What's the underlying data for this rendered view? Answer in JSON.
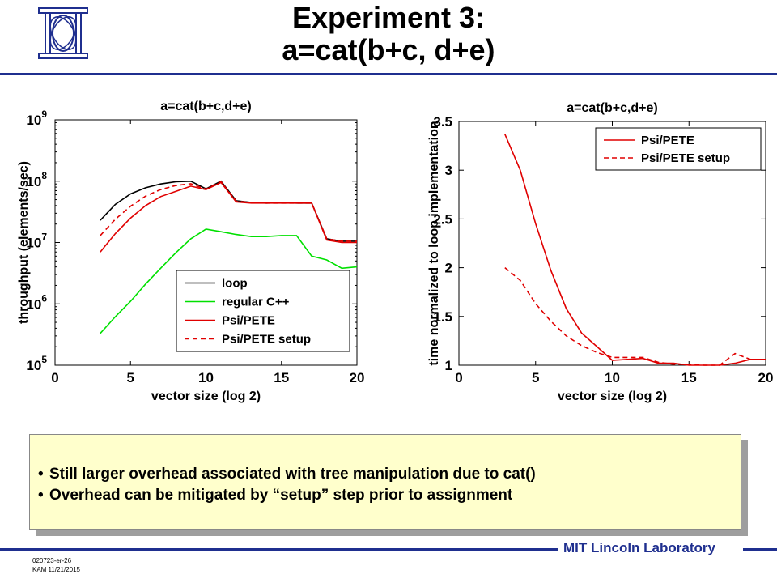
{
  "slide": {
    "title_line1": "Experiment 3:",
    "title_line2": "a=cat(b+c, d+e)",
    "bullets": [
      "Still larger overhead associated with tree manipulation due to cat()",
      "Overhead can be mitigated by “setup” step prior to assignment"
    ],
    "footer_lab": "MIT Lincoln Laboratory",
    "footer_code": "020723-er-26",
    "footer_author": "KAM 11/21/2015",
    "colors": {
      "accent": "#1f2f8f",
      "callout_bg": "#ffffcc",
      "black": "#000000",
      "green": "#00e000",
      "red": "#e00000"
    }
  },
  "chart_data": [
    {
      "type": "line",
      "title": "a=cat(b+c,d+e)",
      "xlabel": "vector size (log 2)",
      "ylabel": "throughput (elements/sec)",
      "xlim": [
        0,
        20
      ],
      "ylim": [
        100000,
        1000000000
      ],
      "yscale": "log",
      "xticks": [
        "0",
        "5",
        "10",
        "15",
        "20"
      ],
      "yticks": [
        {
          "base": "10",
          "exp": "5"
        },
        {
          "base": "10",
          "exp": "6"
        },
        {
          "base": "10",
          "exp": "7"
        },
        {
          "base": "10",
          "exp": "8"
        },
        {
          "base": "10",
          "exp": "9"
        }
      ],
      "legend_position": "bottom-right",
      "x": [
        3,
        4,
        5,
        6,
        7,
        8,
        9,
        10,
        11,
        12,
        13,
        14,
        15,
        16,
        17,
        18,
        19,
        20
      ],
      "series": [
        {
          "name": "loop",
          "color": "#000000",
          "dash": "solid",
          "values": [
            23000000,
            42000000,
            62000000,
            78000000,
            90000000,
            98000000,
            100000000,
            75000000,
            100000000,
            48000000,
            45000000,
            44000000,
            45000000,
            44000000,
            44000000,
            11500000,
            10500000,
            10500000
          ]
        },
        {
          "name": "regular C++",
          "color": "#00e000",
          "dash": "solid",
          "values": [
            330000,
            620000,
            1100000,
            2100000,
            3800000,
            6800000,
            11500000,
            16500000,
            15000000,
            13500000,
            12500000,
            12500000,
            13000000,
            13000000,
            6000000,
            5200000,
            3800000,
            4000000
          ]
        },
        {
          "name": "Psi/PETE",
          "color": "#e00000",
          "dash": "solid",
          "values": [
            7000000,
            14000000,
            25000000,
            40000000,
            56000000,
            68000000,
            83000000,
            73000000,
            95000000,
            46000000,
            44000000,
            44000000,
            44000000,
            44000000,
            44000000,
            11000000,
            10000000,
            10000000
          ]
        },
        {
          "name": "Psi/PETE setup",
          "color": "#e00000",
          "dash": "dashed",
          "values": [
            13000000,
            24000000,
            39000000,
            57000000,
            73000000,
            85000000,
            91000000,
            74000000,
            98000000,
            47000000,
            45000000,
            44000000,
            44000000,
            44000000,
            44000000,
            11500000,
            10500000,
            10500000
          ]
        }
      ]
    },
    {
      "type": "line",
      "title": "a=cat(b+c,d+e)",
      "xlabel": "vector size (log 2)",
      "ylabel": "time normalized to loop implementation",
      "xlim": [
        0,
        20
      ],
      "ylim": [
        1,
        3.5
      ],
      "xticks": [
        "0",
        "5",
        "10",
        "15",
        "20"
      ],
      "yticks": [
        "1",
        "1.5",
        "2",
        "2.5",
        "3",
        "3.5"
      ],
      "legend_position": "top-right",
      "x": [
        3,
        4,
        5,
        6,
        7,
        8,
        9,
        10,
        11,
        12,
        13,
        14,
        15,
        16,
        17,
        18,
        19,
        20
      ],
      "series": [
        {
          "name": "Psi/PETE",
          "color": "#e00000",
          "dash": "solid",
          "values": [
            3.37,
            3.0,
            2.45,
            1.97,
            1.58,
            1.33,
            1.19,
            1.05,
            1.06,
            1.07,
            1.02,
            1.02,
            1.0,
            1.0,
            1.0,
            1.02,
            1.06,
            1.06
          ]
        },
        {
          "name": "Psi/PETE setup",
          "color": "#e00000",
          "dash": "dashed",
          "values": [
            2.0,
            1.87,
            1.63,
            1.45,
            1.3,
            1.2,
            1.13,
            1.08,
            1.08,
            1.08,
            1.03,
            1.01,
            1.01,
            1.0,
            1.0,
            1.12,
            1.06,
            1.06
          ]
        }
      ]
    }
  ]
}
